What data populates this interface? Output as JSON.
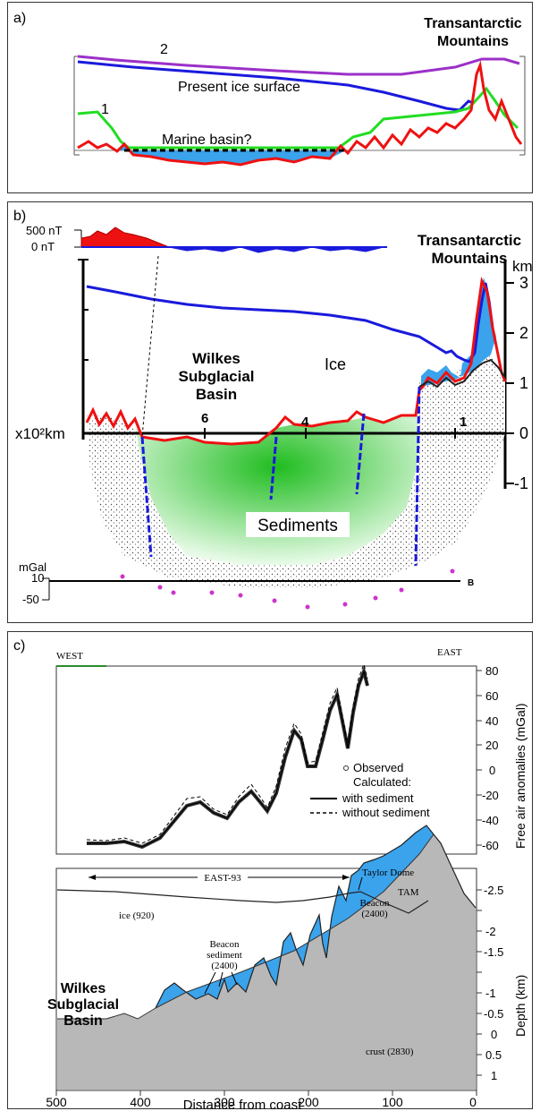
{
  "panel_a": {
    "label": "a)",
    "title_line1": "Transantarctic",
    "title_line2": "Mountains",
    "curve2_label": "2",
    "curve1_label": "1",
    "ice_surface_label": "Present ice surface",
    "basin_label": "Marine basin?"
  },
  "panel_b": {
    "label": "b)",
    "mag_500": "500 nT",
    "mag_0": "0 nT",
    "title_line1": "Transantarctic",
    "title_line2": "Mountains",
    "km_unit": "km",
    "right_ticks": [
      "3",
      "2",
      "1",
      "0",
      "-1"
    ],
    "basin_line1": "Wilkes",
    "basin_line2": "Subglacial",
    "basin_line3": "Basin",
    "ice_label": "Ice",
    "x_unit": "x10²km",
    "x_ticks": [
      "6",
      "4",
      "1"
    ],
    "sediments_label": "Sediments",
    "grav_unit": "mGal",
    "grav_10": "10",
    "grav_m50": "-50",
    "profile_end": "B"
  },
  "panel_c": {
    "label": "c)",
    "west": "WEST",
    "east": "EAST",
    "y1_ticks": [
      "80",
      "60",
      "40",
      "20",
      "0",
      "-20",
      "-40",
      "-60"
    ],
    "y1_label": "Free air anomalies (mGal)",
    "legend_observed": "Observed",
    "legend_calculated": "Calculated:",
    "legend_with": "with sediment",
    "legend_without": "without sediment",
    "survey_label": "EAST-93",
    "taylor_dome": "Taylor Dome",
    "tam": "TAM",
    "ice_label": "ice (920)",
    "beacon_sed_line1": "Beacon",
    "beacon_sed_line2": "sediment",
    "beacon_sed_line3": "(2400)",
    "beacon_line1": "Beacon",
    "beacon_line2": "(2400)",
    "crust_label": "crust (2830)",
    "wsb_line1": "Wilkes",
    "wsb_line2": "Subglacial",
    "wsb_line3": "Basin",
    "y2_ticks": [
      "-2.5",
      "-2",
      "-1.5",
      "-1",
      "-0.5",
      "0",
      "0.5",
      "1"
    ],
    "y2_label": "Depth (km)",
    "x_ticks": [
      "500",
      "400",
      "300",
      "200",
      "100",
      "0"
    ],
    "x_label": "Distance from coast"
  },
  "colors": {
    "purple": "#9b30c8",
    "blue": "#1a1adc",
    "green": "#22dd22",
    "red": "#ee1111",
    "water": "#3aa3ec",
    "sed_green": "#33cc33",
    "grey": "#b8b8b8",
    "dot": "#cc33cc"
  }
}
